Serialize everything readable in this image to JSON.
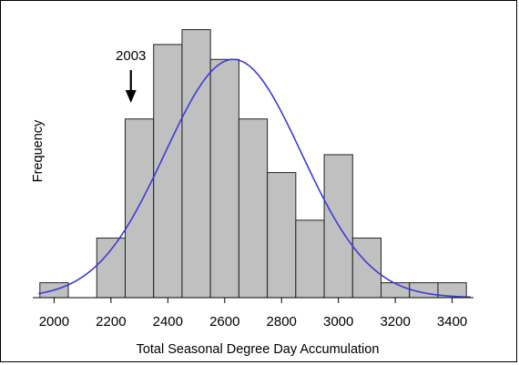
{
  "chart_data": {
    "type": "bar",
    "subtype": "histogram",
    "xlabel": "Total Seasonal Degree Day Accumulation",
    "ylabel": "Frequency",
    "x_ticks": [
      "2000",
      "2200",
      "2400",
      "2600",
      "2800",
      "3000",
      "3200",
      "3400"
    ],
    "xlim": [
      1925,
      3475
    ],
    "ylim": [
      0,
      9.2
    ],
    "bins": [
      {
        "start": 1950,
        "end": 2050,
        "count": 0.5
      },
      {
        "start": 2050,
        "end": 2150,
        "count": 0
      },
      {
        "start": 2150,
        "end": 2250,
        "count": 2
      },
      {
        "start": 2250,
        "end": 2350,
        "count": 6
      },
      {
        "start": 2350,
        "end": 2450,
        "count": 8.5
      },
      {
        "start": 2450,
        "end": 2550,
        "count": 9
      },
      {
        "start": 2550,
        "end": 2650,
        "count": 8
      },
      {
        "start": 2650,
        "end": 2750,
        "count": 6
      },
      {
        "start": 2750,
        "end": 2850,
        "count": 4.2
      },
      {
        "start": 2850,
        "end": 2950,
        "count": 2.6
      },
      {
        "start": 2950,
        "end": 3050,
        "count": 4.8
      },
      {
        "start": 3050,
        "end": 3150,
        "count": 2
      },
      {
        "start": 3150,
        "end": 3250,
        "count": 0.5
      },
      {
        "start": 3250,
        "end": 3350,
        "count": 0.5
      },
      {
        "start": 3350,
        "end": 3450,
        "count": 0.5
      }
    ],
    "normal_curve": {
      "mean": 2630,
      "sd": 240,
      "peak": 8
    },
    "annotation": {
      "label": "2003",
      "x": 2270
    },
    "colors": {
      "bar_fill": "#c0c0c0",
      "bar_stroke": "#222222",
      "curve": "#3b3bd9"
    },
    "grid": false,
    "legend": "none"
  }
}
